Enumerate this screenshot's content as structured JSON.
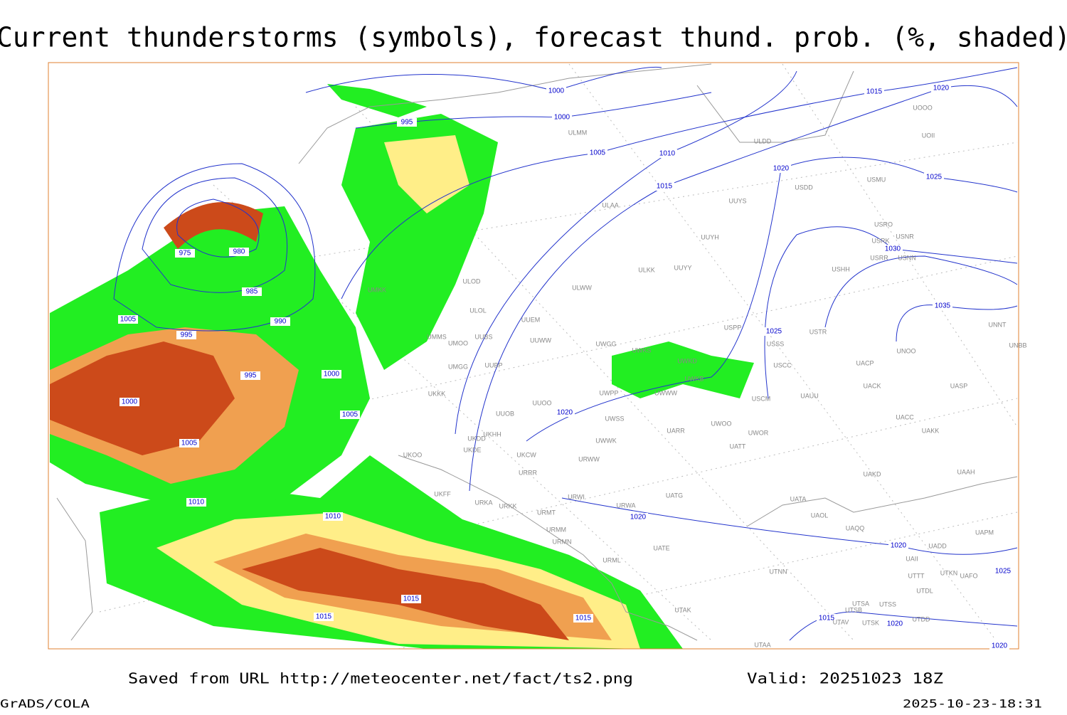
{
  "header": {
    "title": "Current thunderstorms (symbols), forecast thund. prob. (%, shaded)"
  },
  "footer": {
    "source": "Saved from URL http://meteocenter.net/fact/ts2.png",
    "valid": "Valid: 20251023 18Z",
    "credit": "GrADS/COLA",
    "timestamp": "2025-10-23-18:31"
  },
  "isobar_labels": [
    "1000",
    "1000",
    "995",
    "1005",
    "1010",
    "1015",
    "1020",
    "1020",
    "1015",
    "1025",
    "975",
    "980",
    "985",
    "990",
    "1005",
    "995",
    "995",
    "1000",
    "1000",
    "1005",
    "1005",
    "1010",
    "1010",
    "1020",
    "1030",
    "1035",
    "1025",
    "1020",
    "1020",
    "1025",
    "1015",
    "1015",
    "1015",
    "1015",
    "1020",
    "1020"
  ],
  "stations": [
    "ULMM",
    "ULDD",
    "UOOO",
    "UOII",
    "USMU",
    "USDD",
    "ULAA",
    "UUYS",
    "USRO",
    "USRK",
    "USNR",
    "USRR",
    "USNN",
    "UUYH",
    "ULKK",
    "UUYY",
    "USHH",
    "ULWW",
    "ULOD",
    "ULOL",
    "UMKK",
    "UUEM",
    "USPP",
    "USTR",
    "UNNT",
    "UMMS",
    "UUBS",
    "UMOO",
    "UUWW",
    "UWGG",
    "UWKS",
    "USSS",
    "UNOO",
    "UNBB",
    "UMGG",
    "UUBP",
    "UWKD",
    "USCC",
    "UACP",
    "UKKK",
    "UWPP",
    "UWWW",
    "UWKB",
    "USCM",
    "UAUU",
    "UACK",
    "UASP",
    "UUOO",
    "UUOB",
    "UWSS",
    "UACC",
    "UKHH",
    "UKDD",
    "UKDE",
    "UARR",
    "UWOO",
    "UWOR",
    "UAKK",
    "UATT",
    "UWWK",
    "UKOO",
    "UKCW",
    "URWW",
    "URRR",
    "UAKD",
    "UAAH",
    "UKFF",
    "URWI",
    "UATG",
    "UATA",
    "URKA",
    "URKK",
    "URWA",
    "UAOL",
    "URMT",
    "UAQQ",
    "UAPM",
    "URMM",
    "UATE",
    "UADD",
    "URMN",
    "URML",
    "UAII",
    "UTNN",
    "UTTT",
    "UTKN",
    "UAFO",
    "UTDL",
    "UTSA",
    "UTSS",
    "UTSB",
    "UTAK",
    "UTAA",
    "UTSK",
    "UTDD",
    "UTAV"
  ]
}
